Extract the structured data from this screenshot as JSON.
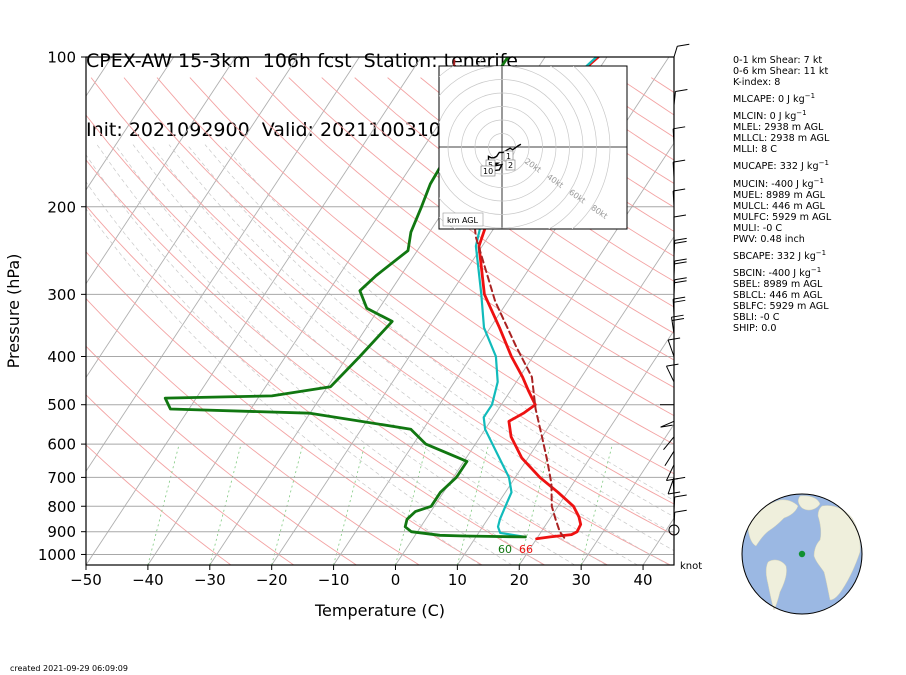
{
  "title": {
    "line1": "CPEX-AW 15-3km  106h fcst  Station: tenerife",
    "line2": "Init: 2021092900  Valid: 202110031000 UTC"
  },
  "chart_data": {
    "type": "line",
    "xlabel": "Temperature (C)",
    "ylabel": "Pressure (hPa)",
    "xlim": [
      -50,
      45
    ],
    "ylim": [
      1050,
      100
    ],
    "y_scale": "log",
    "grid": true,
    "x_ticks": [
      "−50",
      "−40",
      "−30",
      "−20",
      "−10",
      "0",
      "10",
      "20",
      "30",
      "40"
    ],
    "y_ticks": [
      "100",
      "200",
      "300",
      "400",
      "500",
      "600",
      "700",
      "800",
      "900",
      "1000"
    ],
    "y_tick_values": [
      100,
      200,
      300,
      400,
      500,
      600,
      700,
      800,
      900,
      1000
    ],
    "wind_unit_label": "knot",
    "surface_labels": {
      "dewpoint": "60",
      "temperature": "66"
    },
    "series": [
      {
        "kind": "temperature",
        "color": "#ee1111",
        "points": [
          [
            -21.4,
            100
          ],
          [
            -24.5,
            120
          ],
          [
            -25.0,
            150
          ],
          [
            -24.0,
            180
          ],
          [
            -22.0,
            210
          ],
          [
            -20.5,
            240
          ],
          [
            -14.5,
            300
          ],
          [
            -8.5,
            350
          ],
          [
            -3.5,
            400
          ],
          [
            0.5,
            440
          ],
          [
            3.0,
            470
          ],
          [
            5.5,
            500
          ],
          [
            4.5,
            520
          ],
          [
            3.0,
            540
          ],
          [
            5.0,
            580
          ],
          [
            9.0,
            640
          ],
          [
            14.0,
            700
          ],
          [
            18.5,
            750
          ],
          [
            22.5,
            800
          ],
          [
            24.5,
            840
          ],
          [
            25.6,
            870
          ],
          [
            25.8,
            900
          ],
          [
            25.2,
            912
          ],
          [
            22.0,
            922
          ],
          [
            20.0,
            930
          ]
        ]
      },
      {
        "kind": "dewpoint",
        "color": "#11bbbb",
        "points": [
          [
            -21.7,
            100
          ],
          [
            -24.5,
            120
          ],
          [
            -25.0,
            150
          ],
          [
            -24.5,
            180
          ],
          [
            -23.0,
            210
          ],
          [
            -21.0,
            240
          ],
          [
            -15.0,
            300
          ],
          [
            -11.0,
            350
          ],
          [
            -6.0,
            400
          ],
          [
            -3.0,
            450
          ],
          [
            -1.5,
            500
          ],
          [
            -1.5,
            530
          ],
          [
            0.0,
            560
          ],
          [
            6.0,
            650
          ],
          [
            9.0,
            700
          ],
          [
            11.0,
            750
          ],
          [
            11.5,
            800
          ],
          [
            12.0,
            850
          ],
          [
            12.5,
            880
          ],
          [
            13.5,
            905
          ],
          [
            18.0,
            922
          ]
        ]
      },
      {
        "kind": "dry-air",
        "color": "#117711",
        "points": [
          [
            -36.0,
            100
          ],
          [
            -36.0,
            120
          ],
          [
            -35.5,
            150
          ],
          [
            -35.0,
            180
          ],
          [
            -34.0,
            200
          ],
          [
            -33.0,
            225
          ],
          [
            -31.5,
            245
          ],
          [
            -34.0,
            275
          ],
          [
            -35.0,
            295
          ],
          [
            -32.0,
            320
          ],
          [
            -26.5,
            340
          ],
          [
            -28.0,
            400
          ],
          [
            -29.5,
            460
          ],
          [
            -38.0,
            480
          ],
          [
            -55.0,
            485
          ],
          [
            -53.0,
            510
          ],
          [
            -30.0,
            520
          ],
          [
            -12.0,
            560
          ],
          [
            -8.0,
            600
          ],
          [
            0.5,
            650
          ],
          [
            0.5,
            700
          ],
          [
            -0.5,
            750
          ],
          [
            -0.5,
            800
          ],
          [
            -2.5,
            820
          ],
          [
            -3.0,
            850
          ],
          [
            -2.5,
            880
          ],
          [
            -1.0,
            900
          ],
          [
            4.0,
            915
          ],
          [
            8.0,
            918
          ],
          [
            12.0,
            920
          ],
          [
            18.0,
            922
          ]
        ]
      },
      {
        "kind": "parcel",
        "color": "#aa2222",
        "points": [
          [
            -50,
            77
          ],
          [
            -40,
            125
          ],
          [
            -30,
            170
          ],
          [
            -22,
            230
          ],
          [
            -12,
            310
          ],
          [
            -4,
            380
          ],
          [
            2,
            440
          ],
          [
            6,
            510
          ],
          [
            10,
            580
          ],
          [
            13.5,
            650
          ],
          [
            16.5,
            720
          ],
          [
            19,
            800
          ],
          [
            21,
            850
          ],
          [
            23,
            900
          ],
          [
            24.6,
            930
          ]
        ]
      }
    ],
    "hodograph": {
      "rings_kt": [
        20,
        40,
        60,
        80
      ],
      "ring_labels": [
        "20kt",
        "40kt",
        "60kt",
        "80kt"
      ],
      "height_labels": [
        "1",
        "2",
        "5",
        "10"
      ],
      "legend": "km AGL",
      "points": [
        [
          -10,
          -18
        ],
        [
          -2,
          -17
        ],
        [
          -1,
          -15
        ],
        [
          0,
          -13
        ],
        [
          -6,
          -14
        ],
        [
          -3,
          -12
        ],
        [
          -7,
          -12
        ],
        [
          -10,
          -11
        ],
        [
          -10,
          -7
        ],
        [
          -8,
          -8
        ],
        [
          -6,
          -8
        ],
        [
          -4,
          -7
        ],
        [
          -2,
          -4
        ],
        [
          1,
          -4
        ],
        [
          4,
          -2
        ],
        [
          6,
          -1
        ],
        [
          8,
          -2
        ],
        [
          12,
          1
        ],
        [
          14,
          2
        ]
      ]
    }
  },
  "indices": [
    {
      "text": "0-1 km Shear: 7 kt",
      "sup": ""
    },
    {
      "text": "0-6 km Shear: 11 kt",
      "sup": ""
    },
    {
      "text": "K-index: 8",
      "sup": ""
    },
    {
      "text": "MLCAPE: 0 J kg",
      "sup": "−1"
    },
    {
      "text": "MLCIN: 0 J kg",
      "sup": "−1"
    },
    {
      "text": "MLEL: 2938 m AGL",
      "sup": ""
    },
    {
      "text": "MLLCL: 2938 m AGL",
      "sup": ""
    },
    {
      "text": "MLLI: 8 C",
      "sup": ""
    },
    {
      "text": "MUCAPE: 332 J kg",
      "sup": "−1"
    },
    {
      "text": "MUCIN: -400 J kg",
      "sup": "−1"
    },
    {
      "text": "MUEL: 8989 m AGL",
      "sup": ""
    },
    {
      "text": "MULCL: 446 m AGL",
      "sup": ""
    },
    {
      "text": "MULFC: 5929 m AGL",
      "sup": ""
    },
    {
      "text": "MULI: -0 C",
      "sup": ""
    },
    {
      "text": "PWV: 0.48 inch",
      "sup": ""
    },
    {
      "text": "SBCAPE: 332 J kg",
      "sup": "−1"
    },
    {
      "text": "SBCIN: -400 J kg",
      "sup": "−1"
    },
    {
      "text": "SBEL: 8989 m AGL",
      "sup": ""
    },
    {
      "text": "SBLCL: 446 m AGL",
      "sup": ""
    },
    {
      "text": "SBLFC: 5929 m AGL",
      "sup": ""
    },
    {
      "text": "SBLI: -0 C",
      "sup": ""
    },
    {
      "text": "SHIP: 0.0",
      "sup": ""
    }
  ],
  "footer": {
    "created": "created 2021-09-29 06:09:09"
  },
  "colors": {
    "ocean": "#9bb8e3",
    "land": "#efefdc",
    "station": "#109030"
  }
}
